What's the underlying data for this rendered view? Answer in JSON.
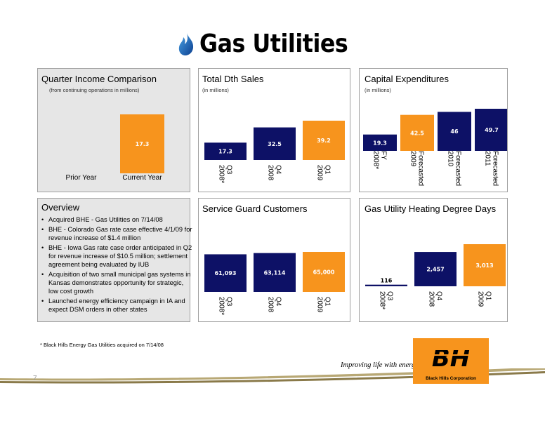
{
  "page": {
    "title": "Gas Utilities",
    "footnote": "* Black Hills Energy Gas Utilities acquired on 7/14/08",
    "slogan": "Improving life with energy",
    "page_number": "7",
    "logo_text": "Black Hills Corporation"
  },
  "colors": {
    "navy": "#0d1166",
    "orange": "#f7941d",
    "panel_gray": "#e6e6e6"
  },
  "overview": {
    "title": "Overview",
    "bullets": [
      "Acquired BHE - Gas Utilities on 7/14/08",
      "BHE - Colorado Gas rate case effective 4/1/09 for revenue increase of $1.4 million",
      "BHE - Iowa Gas rate case order anticipated in Q2 for revenue increase of $10.5 million; settlement agreement being evaluated by IUB",
      "Acquisition of two small municipal gas systems in Kansas demonstrates opportunity for strategic, low cost growth",
      "Launched energy efficiency campaign in IA and expect DSM orders in other states"
    ]
  },
  "chart_data": [
    {
      "id": "quarter-income",
      "type": "bar",
      "title": "Quarter Income Comparison",
      "subtitle": "(from continuing operations in millions)",
      "categories": [
        "Prior Year",
        "Current Year"
      ],
      "values": [
        null,
        17.3
      ],
      "labels": [
        "",
        "17.3"
      ],
      "colors": [
        "#0d1166",
        "#f7941d"
      ],
      "ylim": [
        0,
        17.3
      ],
      "label_rotation": 0
    },
    {
      "id": "total-dth",
      "type": "bar",
      "title": "Total Dth Sales",
      "subtitle": "(in millions)",
      "categories": [
        "Q3 2008*",
        "Q4 2008",
        "Q1 2009"
      ],
      "values": [
        17.3,
        32.5,
        39.2
      ],
      "labels": [
        "17.3",
        "32.5",
        "39.2"
      ],
      "colors": [
        "#0d1166",
        "#0d1166",
        "#f7941d"
      ],
      "ylim": [
        0,
        39.2
      ],
      "label_rotation": 90
    },
    {
      "id": "capex",
      "type": "bar",
      "title": "Capital Expenditures",
      "subtitle": "(in millions)",
      "categories": [
        "FY 2008*",
        "Forecasted 2009",
        "Forecasted 2010",
        "Forecasted 2011"
      ],
      "values": [
        19.3,
        42.5,
        46,
        49.7
      ],
      "labels": [
        "19.3",
        "42.5",
        "46",
        "49.7"
      ],
      "colors": [
        "#0d1166",
        "#f7941d",
        "#0d1166",
        "#0d1166"
      ],
      "ylim": [
        0,
        49.7
      ],
      "label_rotation": 90
    },
    {
      "id": "service-guard",
      "type": "bar",
      "title": "Service Guard Customers",
      "subtitle": "",
      "categories": [
        "Q3 2008*",
        "Q4 2008",
        "Q1 2009"
      ],
      "values": [
        61093,
        63114,
        65000
      ],
      "labels": [
        "61,093",
        "63,114",
        "65,000"
      ],
      "colors": [
        "#0d1166",
        "#0d1166",
        "#f7941d"
      ],
      "ylim": [
        0,
        65000
      ],
      "label_rotation": 90
    },
    {
      "id": "degree-days",
      "type": "bar",
      "title": "Gas Utility Heating Degree Days",
      "subtitle": "",
      "categories": [
        "Q3 2008*",
        "Q4 2008",
        "Q1 2009"
      ],
      "values": [
        116,
        2457,
        3013
      ],
      "labels": [
        "116",
        "2,457",
        "3,013"
      ],
      "colors": [
        "#0d1166",
        "#0d1166",
        "#f7941d"
      ],
      "ylim": [
        0,
        3013
      ],
      "label_rotation": 90
    }
  ]
}
